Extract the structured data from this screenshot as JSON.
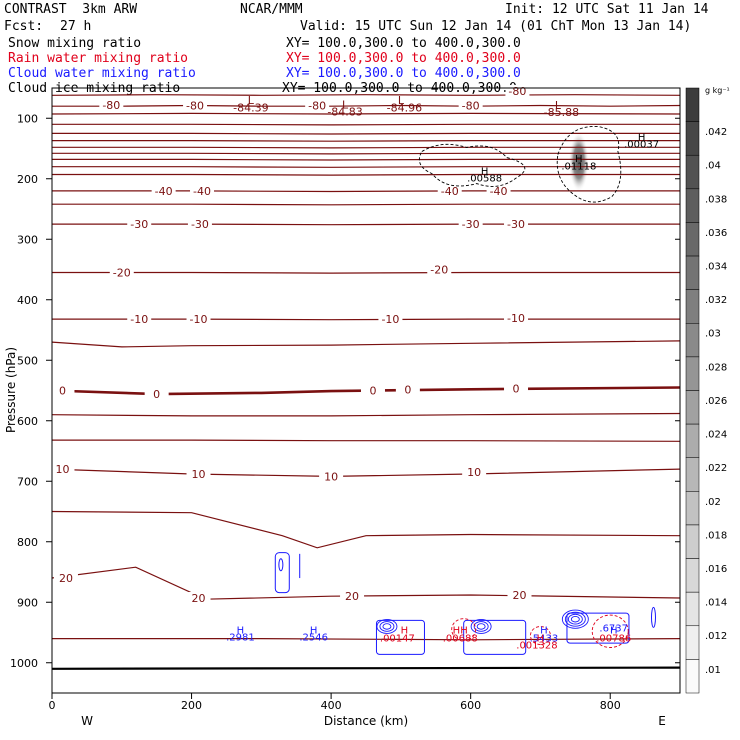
{
  "header": {
    "model": "CONTRAST  3km ARW",
    "center": "NCAR/MMM",
    "init": "Init: 12 UTC Sat 11 Jan 14",
    "fcst_label": "Fcst:",
    "fcst_value": "27 h",
    "valid": "Valid: 15 UTC Sun 12 Jan 14 (01 ChT Mon 13 Jan 14)"
  },
  "fields": [
    {
      "name": "Snow mixing ratio",
      "xy": "XY= 100.0,300.0 to 400.0,300.0",
      "color": "#000000"
    },
    {
      "name": "Rain water mixing ratio",
      "xy": "XY= 100.0,300.0 to 400.0,300.0",
      "color": "#e0001b"
    },
    {
      "name": "Cloud water mixing ratio",
      "xy": "XY= 100.0,300.0 to 400.0,300.0",
      "color": "#1a1aff"
    },
    {
      "name": "Cloud ice mixing ratio",
      "xy": "XY= 100.0,300.0 to 400.0,300.0",
      "color": "#000000"
    }
  ],
  "chart_data": {
    "type": "contour-cross-section",
    "xlabel": "Distance (km)",
    "ylabel": "Pressure (hPa)",
    "xlim": [
      0,
      900
    ],
    "ylim": [
      1050,
      50
    ],
    "x_ticks": [
      0,
      200,
      400,
      600,
      800
    ],
    "y_ticks": [
      100,
      200,
      300,
      400,
      500,
      600,
      700,
      800,
      900,
      1000
    ],
    "x_tick_labels": [
      "0",
      "200",
      "400",
      "600",
      "800"
    ],
    "y_tick_labels": [
      "100",
      "200",
      "300",
      "400",
      "500",
      "600",
      "700",
      "800",
      "900",
      "1000"
    ],
    "west_label": "W",
    "east_label": "E",
    "temperature_contours": [
      {
        "label": "-80",
        "color": "#7a1010",
        "points": [
          [
            0,
            62
          ],
          [
            150,
            61
          ],
          [
            300,
            62
          ],
          [
            450,
            61
          ],
          [
            600,
            62
          ],
          [
            750,
            61
          ],
          [
            900,
            62
          ]
        ],
        "labels_at": [
          [
            667,
            55
          ]
        ]
      },
      {
        "label": "-80",
        "color": "#7a1010",
        "points": [
          [
            0,
            80
          ],
          [
            100,
            80
          ],
          [
            200,
            79
          ],
          [
            300,
            80
          ],
          [
            400,
            80
          ],
          [
            500,
            79
          ],
          [
            600,
            80
          ],
          [
            700,
            79
          ],
          [
            800,
            80
          ],
          [
            900,
            79
          ]
        ],
        "labels_at": [
          [
            85,
            78
          ],
          [
            205,
            79
          ],
          [
            380,
            79
          ],
          [
            600,
            79
          ]
        ]
      },
      {
        "label": "",
        "color": "#7a1010",
        "points": [
          [
            0,
            93
          ],
          [
            200,
            92
          ],
          [
            400,
            93
          ],
          [
            600,
            92
          ],
          [
            900,
            93
          ]
        ],
        "labels_at": []
      },
      {
        "label": "",
        "color": "#7a1010",
        "points": [
          [
            0,
            110
          ],
          [
            200,
            110
          ],
          [
            400,
            111
          ],
          [
            600,
            110
          ],
          [
            900,
            110
          ]
        ],
        "labels_at": []
      },
      {
        "label": "",
        "color": "#7a1010",
        "points": [
          [
            0,
            125
          ],
          [
            200,
            125
          ],
          [
            400,
            126
          ],
          [
            600,
            125
          ],
          [
            900,
            125
          ]
        ],
        "labels_at": []
      },
      {
        "label": "",
        "color": "#7a1010",
        "points": [
          [
            0,
            137
          ],
          [
            200,
            137
          ],
          [
            400,
            138
          ],
          [
            600,
            137
          ],
          [
            900,
            137
          ]
        ],
        "labels_at": []
      },
      {
        "label": "",
        "color": "#7a1010",
        "points": [
          [
            0,
            148
          ],
          [
            200,
            148
          ],
          [
            400,
            149
          ],
          [
            600,
            148
          ],
          [
            900,
            148
          ]
        ],
        "labels_at": []
      },
      {
        "label": "",
        "color": "#7a1010",
        "points": [
          [
            0,
            158
          ],
          [
            200,
            158
          ],
          [
            400,
            159
          ],
          [
            600,
            158
          ],
          [
            900,
            158
          ]
        ],
        "labels_at": []
      },
      {
        "label": "",
        "color": "#7a1010",
        "points": [
          [
            0,
            168
          ],
          [
            200,
            168
          ],
          [
            400,
            169
          ],
          [
            600,
            168
          ],
          [
            900,
            168
          ]
        ],
        "labels_at": []
      },
      {
        "label": "",
        "color": "#7a1010",
        "points": [
          [
            0,
            180
          ],
          [
            200,
            180
          ],
          [
            400,
            181
          ],
          [
            600,
            180
          ],
          [
            900,
            180
          ]
        ],
        "labels_at": []
      },
      {
        "label": "",
        "color": "#7a1010",
        "points": [
          [
            0,
            193
          ],
          [
            200,
            193
          ],
          [
            400,
            194
          ],
          [
            600,
            193
          ],
          [
            900,
            193
          ]
        ],
        "labels_at": []
      },
      {
        "label": "-40",
        "color": "#7a1010",
        "points": [
          [
            0,
            220
          ],
          [
            200,
            220
          ],
          [
            400,
            221
          ],
          [
            600,
            220
          ],
          [
            900,
            220
          ]
        ],
        "labels_at": [
          [
            160,
            220
          ],
          [
            215,
            220
          ],
          [
            570,
            220
          ],
          [
            640,
            220
          ]
        ]
      },
      {
        "label": "",
        "color": "#7a1010",
        "points": [
          [
            0,
            242
          ],
          [
            200,
            242
          ],
          [
            400,
            243
          ],
          [
            600,
            242
          ],
          [
            900,
            242
          ]
        ],
        "labels_at": []
      },
      {
        "label": "-30",
        "color": "#7a1010",
        "points": [
          [
            0,
            275
          ],
          [
            200,
            275
          ],
          [
            400,
            276
          ],
          [
            600,
            275
          ],
          [
            900,
            275
          ]
        ],
        "labels_at": [
          [
            125,
            275
          ],
          [
            212,
            275
          ],
          [
            600,
            275
          ],
          [
            665,
            275
          ]
        ]
      },
      {
        "label": "-20",
        "color": "#7a1010",
        "points": [
          [
            0,
            355
          ],
          [
            200,
            355
          ],
          [
            400,
            356
          ],
          [
            600,
            355
          ],
          [
            900,
            355
          ]
        ],
        "labels_at": [
          [
            100,
            355
          ],
          [
            555,
            350
          ]
        ]
      },
      {
        "label": "-10",
        "color": "#7a1010",
        "points": [
          [
            0,
            432
          ],
          [
            200,
            432
          ],
          [
            400,
            433
          ],
          [
            600,
            432
          ],
          [
            900,
            432
          ]
        ],
        "labels_at": [
          [
            125,
            432
          ],
          [
            210,
            432
          ],
          [
            485,
            432
          ],
          [
            665,
            430
          ]
        ]
      },
      {
        "label": "",
        "color": "#7a1010",
        "points": [
          [
            0,
            470
          ],
          [
            100,
            478
          ],
          [
            200,
            476
          ],
          [
            400,
            475
          ],
          [
            600,
            472
          ],
          [
            900,
            468
          ]
        ],
        "labels_at": []
      },
      {
        "label": "0",
        "color": "#7a1010",
        "points": [
          [
            0,
            550
          ],
          [
            150,
            556
          ],
          [
            300,
            554
          ],
          [
            400,
            551
          ],
          [
            600,
            548
          ],
          [
            900,
            545
          ]
        ],
        "labels_at": [
          [
            15,
            550
          ],
          [
            150,
            556
          ],
          [
            460,
            550
          ],
          [
            510,
            548
          ],
          [
            665,
            547
          ]
        ]
      },
      {
        "label": "",
        "color": "#7a1010",
        "points": [
          [
            0,
            590
          ],
          [
            200,
            592
          ],
          [
            400,
            592
          ],
          [
            600,
            590
          ],
          [
            900,
            588
          ]
        ],
        "labels_at": []
      },
      {
        "label": "",
        "color": "#7a1010",
        "points": [
          [
            0,
            632
          ],
          [
            200,
            632
          ],
          [
            400,
            633
          ],
          [
            600,
            633
          ],
          [
            900,
            634
          ]
        ],
        "labels_at": []
      },
      {
        "label": "10",
        "color": "#7a1010",
        "points": [
          [
            0,
            680
          ],
          [
            200,
            688
          ],
          [
            400,
            692
          ],
          [
            600,
            688
          ],
          [
            900,
            680
          ]
        ],
        "labels_at": [
          [
            15,
            680
          ],
          [
            210,
            688
          ],
          [
            400,
            692
          ],
          [
            605,
            685
          ]
        ]
      },
      {
        "label": "",
        "color": "#7a1010",
        "points": [
          [
            0,
            750
          ],
          [
            200,
            752
          ],
          [
            330,
            790
          ],
          [
            380,
            810
          ],
          [
            450,
            790
          ],
          [
            600,
            788
          ],
          [
            900,
            790
          ]
        ],
        "labels_at": []
      },
      {
        "label": "20",
        "color": "#7a1010",
        "points": [
          [
            0,
            860
          ],
          [
            120,
            842
          ],
          [
            220,
            895
          ],
          [
            400,
            890
          ],
          [
            600,
            888
          ],
          [
            900,
            893
          ]
        ],
        "labels_at": [
          [
            20,
            860
          ],
          [
            210,
            893
          ],
          [
            430,
            890
          ],
          [
            670,
            888
          ]
        ]
      },
      {
        "label": "",
        "color": "#7a1010",
        "points": [
          [
            0,
            960
          ],
          [
            300,
            960
          ],
          [
            600,
            962
          ],
          [
            900,
            960
          ]
        ],
        "labels_at": []
      }
    ],
    "temperature_labels": [
      "-80",
      "-40",
      "-30",
      "-20",
      "-10",
      "0",
      "10",
      "20"
    ],
    "minima_labels": [
      {
        "text": "L",
        "x": 285,
        "p": 70
      },
      {
        "text": "-84.39",
        "x": 285,
        "p": 82
      },
      {
        "text": "L",
        "x": 420,
        "p": 77
      },
      {
        "text": "-84.83",
        "x": 420,
        "p": 89
      },
      {
        "text": "L",
        "x": 500,
        "p": 70
      },
      {
        "text": "-84.96",
        "x": 505,
        "p": 82
      },
      {
        "text": "L",
        "x": 725,
        "p": 78
      },
      {
        "text": "-85.88",
        "x": 730,
        "p": 90
      }
    ],
    "snow_maxima": [
      {
        "text": "H",
        "x": 755,
        "p": 166
      },
      {
        "text": ".01118",
        "x": 755,
        "p": 178
      },
      {
        "text": "H",
        "x": 620,
        "p": 186
      },
      {
        "text": ".00588",
        "x": 620,
        "p": 198
      },
      {
        "text": "H",
        "x": 845,
        "p": 130
      },
      {
        "text": ".00037",
        "x": 845,
        "p": 142
      }
    ],
    "cloud_water_maxima": [
      {
        "text": "H",
        "x": 270,
        "p": 945
      },
      {
        "text": ".2981",
        "x": 270,
        "p": 957
      },
      {
        "text": "H",
        "x": 375,
        "p": 945
      },
      {
        "text": ".2546",
        "x": 375,
        "p": 957
      },
      {
        "text": "H",
        "x": 705,
        "p": 945
      },
      {
        "text": "H",
        "x": 805,
        "p": 945
      }
    ],
    "overlap_labels": [
      {
        "text": ".5433",
        "x": 705,
        "p": 958,
        "color": "#1a1aff"
      },
      {
        "text": ".6737",
        "x": 805,
        "p": 942,
        "color": "#1a1aff"
      },
      {
        "text": "H",
        "x": 505,
        "p": 945,
        "color": "#e0001b"
      },
      {
        "text": ".00147",
        "x": 495,
        "p": 958,
        "color": "#e0001b"
      },
      {
        "text": "HH",
        "x": 585,
        "p": 945,
        "color": "#e0001b"
      },
      {
        "text": ".00688",
        "x": 585,
        "p": 958,
        "color": "#e0001b"
      },
      {
        "text": "H",
        "x": 700,
        "p": 958,
        "color": "#e0001b"
      },
      {
        "text": ".001328",
        "x": 695,
        "p": 970,
        "color": "#e0001b"
      },
      {
        "text": ".00786",
        "x": 805,
        "p": 958,
        "color": "#e0001b"
      }
    ],
    "colorbar": {
      "unit": "g kg⁻¹",
      "ticks": [
        ".042",
        ".04",
        ".038",
        ".036",
        ".034",
        ".032",
        ".03",
        ".028",
        ".026",
        ".024",
        ".022",
        ".02",
        ".018",
        ".016",
        ".014",
        ".012",
        ".01"
      ]
    }
  }
}
